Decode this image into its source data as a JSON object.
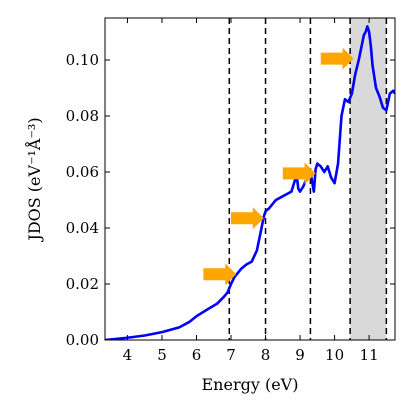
{
  "chart_data": {
    "type": "line",
    "xlabel": "Energy (eV)",
    "ylabel": "JDOS (eV⁻¹Å⁻³)",
    "xlim": [
      3.35,
      11.75
    ],
    "ylim": [
      0,
      0.115
    ],
    "x_ticks": [
      4,
      5,
      6,
      7,
      8,
      9,
      10,
      11
    ],
    "y_ticks": [
      0.0,
      0.02,
      0.04,
      0.06,
      0.08,
      0.1
    ],
    "x_tick_labels": [
      "4",
      "5",
      "6",
      "7",
      "8",
      "9",
      "10",
      "11"
    ],
    "y_tick_labels": [
      "0.00",
      "0.02",
      "0.04",
      "0.06",
      "0.08",
      "0.10"
    ],
    "grid": false,
    "series": [
      {
        "color": "#0000ff",
        "x": [
          3.35,
          3.6,
          4.0,
          4.5,
          5.0,
          5.5,
          5.8,
          6.0,
          6.3,
          6.6,
          6.8,
          6.9,
          7.0,
          7.1,
          7.2,
          7.3,
          7.45,
          7.6,
          7.75,
          7.85,
          7.95,
          8.0,
          8.1,
          8.2,
          8.3,
          8.45,
          8.6,
          8.75,
          8.85,
          8.9,
          8.95,
          9.0,
          9.05,
          9.1,
          9.2,
          9.3,
          9.4,
          9.45,
          9.5,
          9.6,
          9.7,
          9.8,
          9.9,
          10.0,
          10.1,
          10.2,
          10.3,
          10.4,
          10.5,
          10.6,
          10.7,
          10.8,
          10.85,
          10.9,
          10.95,
          11.0,
          11.05,
          11.1,
          11.2,
          11.3,
          11.4,
          11.5,
          11.6,
          11.7,
          11.75
        ],
        "y": [
          0.0,
          0.0003,
          0.0008,
          0.0016,
          0.0028,
          0.0045,
          0.0065,
          0.0085,
          0.0108,
          0.013,
          0.0155,
          0.017,
          0.02,
          0.0225,
          0.024,
          0.0255,
          0.027,
          0.028,
          0.032,
          0.038,
          0.044,
          0.046,
          0.047,
          0.0485,
          0.05,
          0.051,
          0.052,
          0.053,
          0.057,
          0.059,
          0.054,
          0.053,
          0.054,
          0.055,
          0.058,
          0.06,
          0.053,
          0.061,
          0.063,
          0.062,
          0.06,
          0.062,
          0.058,
          0.056,
          0.063,
          0.08,
          0.086,
          0.085,
          0.088,
          0.095,
          0.1,
          0.106,
          0.109,
          0.11,
          0.112,
          0.11,
          0.105,
          0.098,
          0.09,
          0.087,
          0.083,
          0.082,
          0.088,
          0.089,
          0.088
        ]
      }
    ],
    "vlines": [
      {
        "x": 6.95,
        "style": "dashed"
      },
      {
        "x": 8.0,
        "style": "dashed"
      },
      {
        "x": 9.3,
        "style": "dashed"
      },
      {
        "x": 10.45,
        "style": "dashed"
      },
      {
        "x": 11.5,
        "style": "dashed"
      }
    ],
    "shaded_region": {
      "x": [
        10.45,
        11.5
      ],
      "color": "#d9d9d9"
    },
    "arrows": [
      {
        "x_tail": 6.2,
        "x_head": 7.15,
        "y": 0.0235,
        "color": "#ffa500"
      },
      {
        "x_tail": 7.0,
        "x_head": 7.95,
        "y": 0.0435,
        "color": "#ffa500"
      },
      {
        "x_tail": 8.5,
        "x_head": 9.45,
        "y": 0.0595,
        "color": "#ffa500"
      },
      {
        "x_tail": 9.6,
        "x_head": 10.55,
        "y": 0.1005,
        "color": "#ffa500"
      }
    ]
  }
}
